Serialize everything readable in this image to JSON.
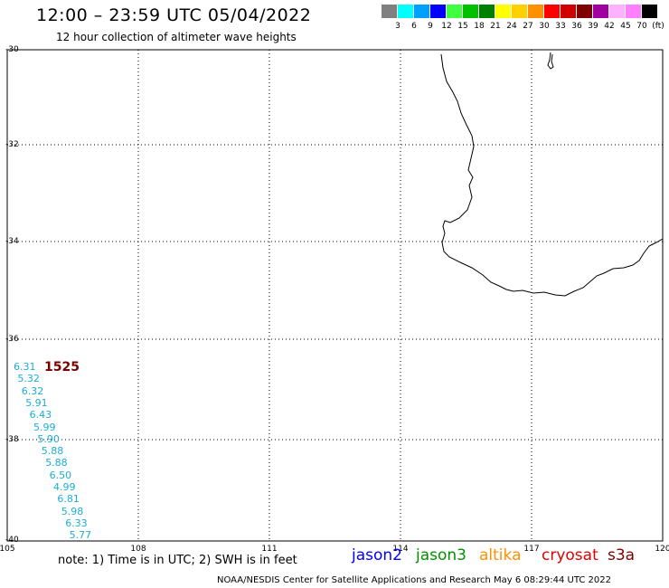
{
  "header": {
    "title": "12:00 – 23:59 UTC 05/04/2022",
    "subtitle": "12 hour collection of altimeter wave heights"
  },
  "legend": {
    "colors": [
      "#808080",
      "#00ffff",
      "#00a0ff",
      "#0000ff",
      "#40ff40",
      "#00c000",
      "#008000",
      "#ffff00",
      "#ffd000",
      "#ff9000",
      "#ff0000",
      "#d00000",
      "#800000",
      "#a000a0",
      "#ffb0ff",
      "#ff80ff",
      "#000000"
    ],
    "labels": [
      "3",
      "6",
      "9",
      "12",
      "15",
      "18",
      "21",
      "24",
      "27",
      "30",
      "33",
      "36",
      "39",
      "42",
      "45",
      "70",
      "(ft)"
    ]
  },
  "map": {
    "lat_labels": [
      "-30",
      "-32",
      "-34",
      "-36",
      "-38",
      "-40"
    ],
    "lon_labels": [
      "105",
      "108",
      "111",
      "114",
      "117",
      "120"
    ],
    "coastline_feature": "Southwestern Australia coastline"
  },
  "wave_track": {
    "pass_time": "1525",
    "heights": [
      "6.31",
      "5.32",
      "6.32",
      "5.91",
      "6.43",
      "5.99",
      "5.90",
      "5.88",
      "5.88",
      "6.50",
      "4.99",
      "6.81",
      "5.98",
      "6.33",
      "5.77"
    ]
  },
  "note": "note: 1) Time is in UTC; 2) SWH is in feet",
  "satellites": [
    {
      "name": "jason2",
      "color": "#0000ff"
    },
    {
      "name": "jason3",
      "color": "#009000"
    },
    {
      "name": "altika",
      "color": "#ff9000"
    },
    {
      "name": "cryosat",
      "color": "#e00000"
    },
    {
      "name": "s3a",
      "color": "#800000"
    }
  ],
  "footer": "NOAA/NESDIS Center for Satellite Applications and Research    May  6 08:29:44 UTC 2022"
}
